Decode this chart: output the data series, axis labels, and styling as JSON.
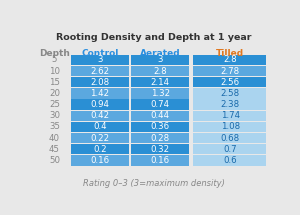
{
  "title": "Rooting Density and Depth at 1 year",
  "footer": "Rating 0–3 (3=maximum density)",
  "col_headers": [
    "Depth",
    "Control",
    "Aerated",
    "Tilled"
  ],
  "header_text_colors": [
    "#888888",
    "#2b8fdf",
    "#2b8fdf",
    "#e07820"
  ],
  "depths": [
    "5",
    "10",
    "15",
    "20",
    "25",
    "30",
    "35",
    "40",
    "45",
    "50"
  ],
  "control": [
    "3",
    "2.62",
    "2.08",
    "1.42",
    "0.94",
    "0.42",
    "0.4",
    "0.22",
    "0.2",
    "0.16"
  ],
  "aerated": [
    "3",
    "2.8",
    "2.14",
    "1.32",
    "0.74",
    "0.44",
    "0.36",
    "0.28",
    "0.32",
    "0.16"
  ],
  "tilled": [
    "2.8",
    "2.78",
    "2.56",
    "2.58",
    "2.38",
    "1.74",
    "1.08",
    "0.68",
    "0.7",
    "0.6"
  ],
  "ctrl_aer_row_colors": [
    "#2a8fd4",
    "#5ba8df",
    "#2a8fd4",
    "#5ba8df",
    "#2a8fd4",
    "#5ba8df",
    "#2a8fd4",
    "#5ba8df",
    "#2a8fd4",
    "#5ba8df"
  ],
  "tilled_row_colors": [
    "#2a8fd4",
    "#5ba8df",
    "#2a8fd4",
    "#aad4ef",
    "#aad4ef",
    "#aad4ef",
    "#aad4ef",
    "#aad4ef",
    "#aad4ef",
    "#aad4ef"
  ],
  "depth_text_color": "#888888",
  "cell_text_color_dark": "#ffffff",
  "cell_text_color_light": "#ffffff",
  "tilled_text_color_light": "#1a6aaa",
  "bg_color": "#e8e8e8",
  "title_color": "#333333",
  "footer_color": "#888888"
}
